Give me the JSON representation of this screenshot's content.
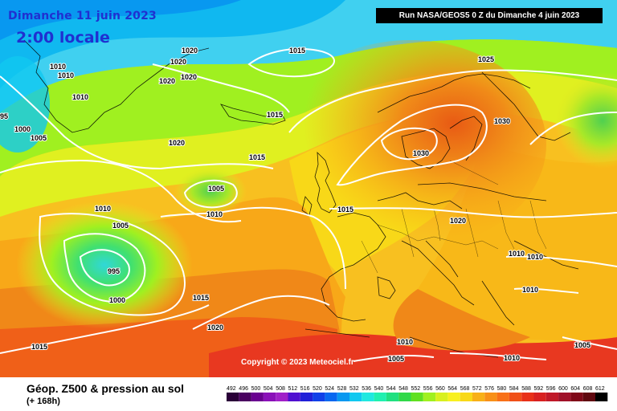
{
  "header": {
    "date": "Dimanche 11 juin 2023",
    "time": "2:00 locale",
    "run": "Run NASA/GEOS5 0 Z du Dimanche 4 juin 2023"
  },
  "copyright": "Copyright © 2023 Meteociel.fr",
  "footer": {
    "title": "Géop. Z500 & pression au sol",
    "subtitle": "(+ 168h)"
  },
  "legend": {
    "values": [
      "492",
      "496",
      "500",
      "504",
      "508",
      "512",
      "516",
      "520",
      "524",
      "528",
      "532",
      "536",
      "540",
      "544",
      "548",
      "552",
      "556",
      "560",
      "564",
      "568",
      "572",
      "576",
      "580",
      "584",
      "588",
      "592",
      "596",
      "600",
      "604",
      "608",
      "612"
    ],
    "colors": [
      "#2a0038",
      "#4a0060",
      "#6a0090",
      "#8a10b8",
      "#a020c8",
      "#5010d0",
      "#2020d8",
      "#1040e8",
      "#0868f0",
      "#0898f0",
      "#10c8f0",
      "#20e8e0",
      "#20f0b0",
      "#20e080",
      "#30d848",
      "#60e020",
      "#a0f020",
      "#d8f020",
      "#f8f020",
      "#f8d818",
      "#f8b018",
      "#f89018",
      "#f87018",
      "#f05018",
      "#e83018",
      "#d82020",
      "#c01828",
      "#a01028",
      "#800818",
      "#600810",
      "#000000"
    ]
  },
  "pressure_labels": [
    "1020",
    "1015",
    "1010",
    "1010",
    "1020",
    "1020",
    "1020",
    "1010",
    "1000",
    "1005",
    "95",
    "1015",
    "1025",
    "1030",
    "1030",
    "1020",
    "1015",
    "1015",
    "1005",
    "1010",
    "1010",
    "1005",
    "995",
    "1000",
    "1015",
    "1020",
    "1015",
    "1020",
    "1010",
    "1010",
    "1010",
    "1010",
    "1005",
    "1010",
    "1005"
  ],
  "colors": {
    "header_text": "#2030d0",
    "run_box_bg": "#000000",
    "isobar": "#ffffff"
  }
}
